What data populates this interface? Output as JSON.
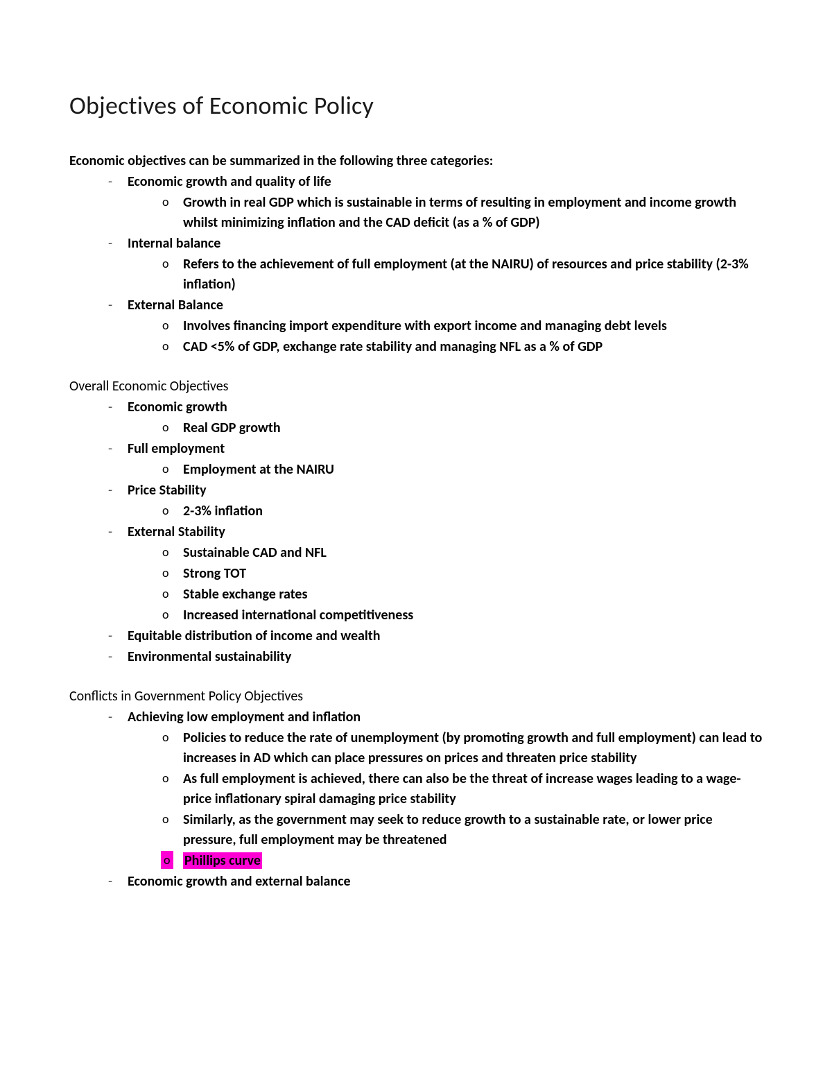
{
  "title": "Objectives of Economic Policy",
  "intro": "Economic objectives can be summarized in the following three categories:",
  "cat1_label": "Economic growth and quality of life",
  "cat1_sub1": "Growth in real GDP which is sustainable in terms of resulting in employment and income growth whilst minimizing inflation and the CAD deficit (as a % of GDP)",
  "cat2_label": "Internal balance",
  "cat2_sub1": "Refers to the achievement of full employment (at the NAIRU) of resources and price stability (2-3% inflation)",
  "cat3_label": "External Balance",
  "cat3_sub1": "Involves financing import expenditure with export income and managing debt levels",
  "cat3_sub2": "CAD <5% of GDP, exchange rate stability and managing NFL as a % of GDP",
  "section2_heading": "Overall Economic Objectives",
  "s2_i1": "Economic growth",
  "s2_i1_a": "Real GDP growth",
  "s2_i2": "Full employment",
  "s2_i2_a": "Employment at the NAIRU",
  "s2_i3": "Price Stability",
  "s2_i3_a": "2-3% inflation",
  "s2_i4": "External Stability",
  "s2_i4_a": "Sustainable CAD and NFL",
  "s2_i4_b": "Strong TOT",
  "s2_i4_c": "Stable exchange rates",
  "s2_i4_d": "Increased international competitiveness",
  "s2_i5": "Equitable distribution of income and wealth",
  "s2_i6": "Environmental sustainability",
  "section3_heading": "Conflicts in Government Policy Objectives",
  "s3_i1": "Achieving low employment and inflation",
  "s3_i1_a": "Policies to reduce the rate of unemployment (by promoting growth and full employment) can lead to increases in AD which can place pressures on prices and threaten price stability",
  "s3_i1_b": "As full employment is achieved, there can also be the threat of increase wages leading to a wage-price inflationary spiral damaging price stability",
  "s3_i1_c": "Similarly, as the government may seek to reduce growth to a sustainable rate, or lower price pressure, full employment may be threatened",
  "s3_i1_d": "Phillips curve",
  "s3_i2": "Economic growth and external balance",
  "highlight_color": "#ff00d4",
  "text_color": "#000000",
  "background_color": "#ffffff",
  "title_fontsize": 36,
  "body_fontsize": 20
}
